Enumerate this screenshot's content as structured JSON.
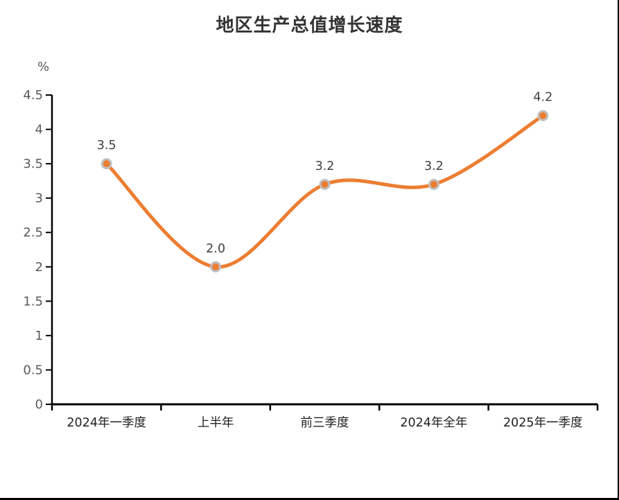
{
  "title": "地区生产总值增长速度",
  "unit_label": "%",
  "chart_data": {
    "type": "line",
    "title": "地区生产总值增长速度",
    "unit_label": "%",
    "categories": [
      "2024年一季度",
      "上半年",
      "前三季度",
      "2024年全年",
      "2025年一季度"
    ],
    "values": [
      3.5,
      2.0,
      3.2,
      3.2,
      4.2
    ],
    "data_labels": [
      "3.5",
      "2.0",
      "3.2",
      "3.2",
      "4.2"
    ],
    "ylim": [
      0,
      4.5
    ],
    "ytick_step": 0.5,
    "smooth": true,
    "grid": false,
    "legend": "none",
    "xlabel": "",
    "ylabel": "%",
    "colors": {
      "line": "#ED7D31",
      "marker_fill": "#ED7D31",
      "marker_ring": "#BFBFBF",
      "axis": "#000000",
      "ytick_label": "#595959",
      "xtick_label": "#1f1f1f",
      "data_label": "#404040",
      "title": "#333333",
      "background": "#ffffff"
    }
  }
}
